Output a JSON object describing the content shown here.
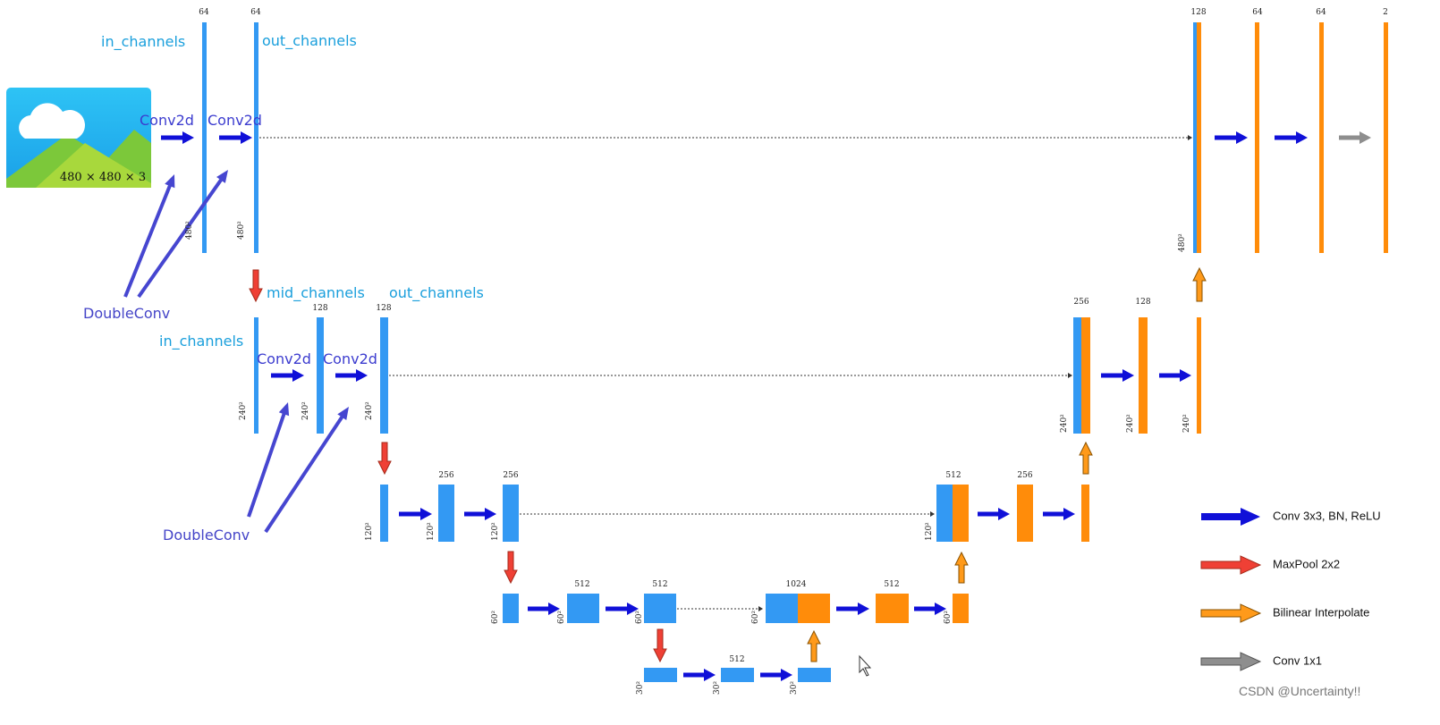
{
  "image_label": "480 × 480 × 3",
  "channel_labels": [
    "64",
    "64",
    "128",
    "64",
    "64",
    "2",
    "128",
    "128",
    "256",
    "128",
    "256",
    "256",
    "512",
    "256",
    "512",
    "512",
    "1024",
    "512",
    "512"
  ],
  "size_labels": [
    "480²",
    "480²",
    "480²",
    "240²",
    "240²",
    "240²",
    "240²",
    "240²",
    "240²",
    "120²",
    "120²",
    "120²",
    "120²",
    "60²",
    "60²",
    "60²",
    "60²",
    "60²",
    "30²",
    "30²",
    "30²"
  ],
  "annotations": [
    "in_channels",
    "out_channels",
    "Conv2d",
    "Conv2d",
    "DoubleConv",
    "mid_channels",
    "out_channels",
    "in_channels",
    "Conv2d",
    "Conv2d",
    "DoubleConv"
  ],
  "legend": [
    "Conv 3x3, BN, ReLU",
    "MaxPool 2x2",
    "Bilinear Interpolate",
    "Conv 1x1"
  ],
  "watermark": "CSDN @Uncertainty!!"
}
